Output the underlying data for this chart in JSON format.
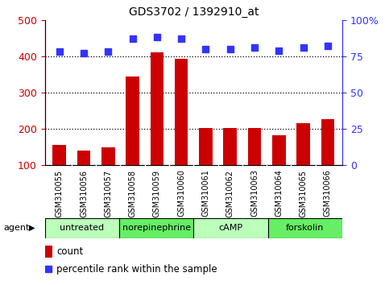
{
  "title": "GDS3702 / 1392910_at",
  "samples": [
    "GSM310055",
    "GSM310056",
    "GSM310057",
    "GSM310058",
    "GSM310059",
    "GSM310060",
    "GSM310061",
    "GSM310062",
    "GSM310063",
    "GSM310064",
    "GSM310065",
    "GSM310066"
  ],
  "counts": [
    155,
    140,
    150,
    345,
    410,
    393,
    203,
    202,
    203,
    182,
    217,
    228
  ],
  "percentiles": [
    78,
    77,
    78,
    87,
    88,
    87,
    80,
    80,
    81,
    79,
    81,
    82
  ],
  "agents": [
    {
      "label": "untreated",
      "start": 0,
      "end": 3,
      "color": "#bbffbb"
    },
    {
      "label": "norepinephrine",
      "start": 3,
      "end": 6,
      "color": "#66ee66"
    },
    {
      "label": "cAMP",
      "start": 6,
      "end": 9,
      "color": "#bbffbb"
    },
    {
      "label": "forskolin",
      "start": 9,
      "end": 12,
      "color": "#66ee66"
    }
  ],
  "bar_color": "#cc0000",
  "dot_color": "#3333ff",
  "ylim_left": [
    100,
    500
  ],
  "ylim_right": [
    0,
    100
  ],
  "yticks_left": [
    100,
    200,
    300,
    400,
    500
  ],
  "yticks_right": [
    0,
    25,
    50,
    75,
    100
  ],
  "yticklabels_right": [
    "0",
    "25",
    "50",
    "75",
    "100%"
  ],
  "grid_lines": [
    200,
    300,
    400
  ],
  "bar_width": 0.55,
  "figsize": [
    4.83,
    3.54
  ],
  "dpi": 100,
  "plot_bg": "#ffffff",
  "label_area_bg": "#cccccc",
  "agent_area_bg": "#99ff99"
}
